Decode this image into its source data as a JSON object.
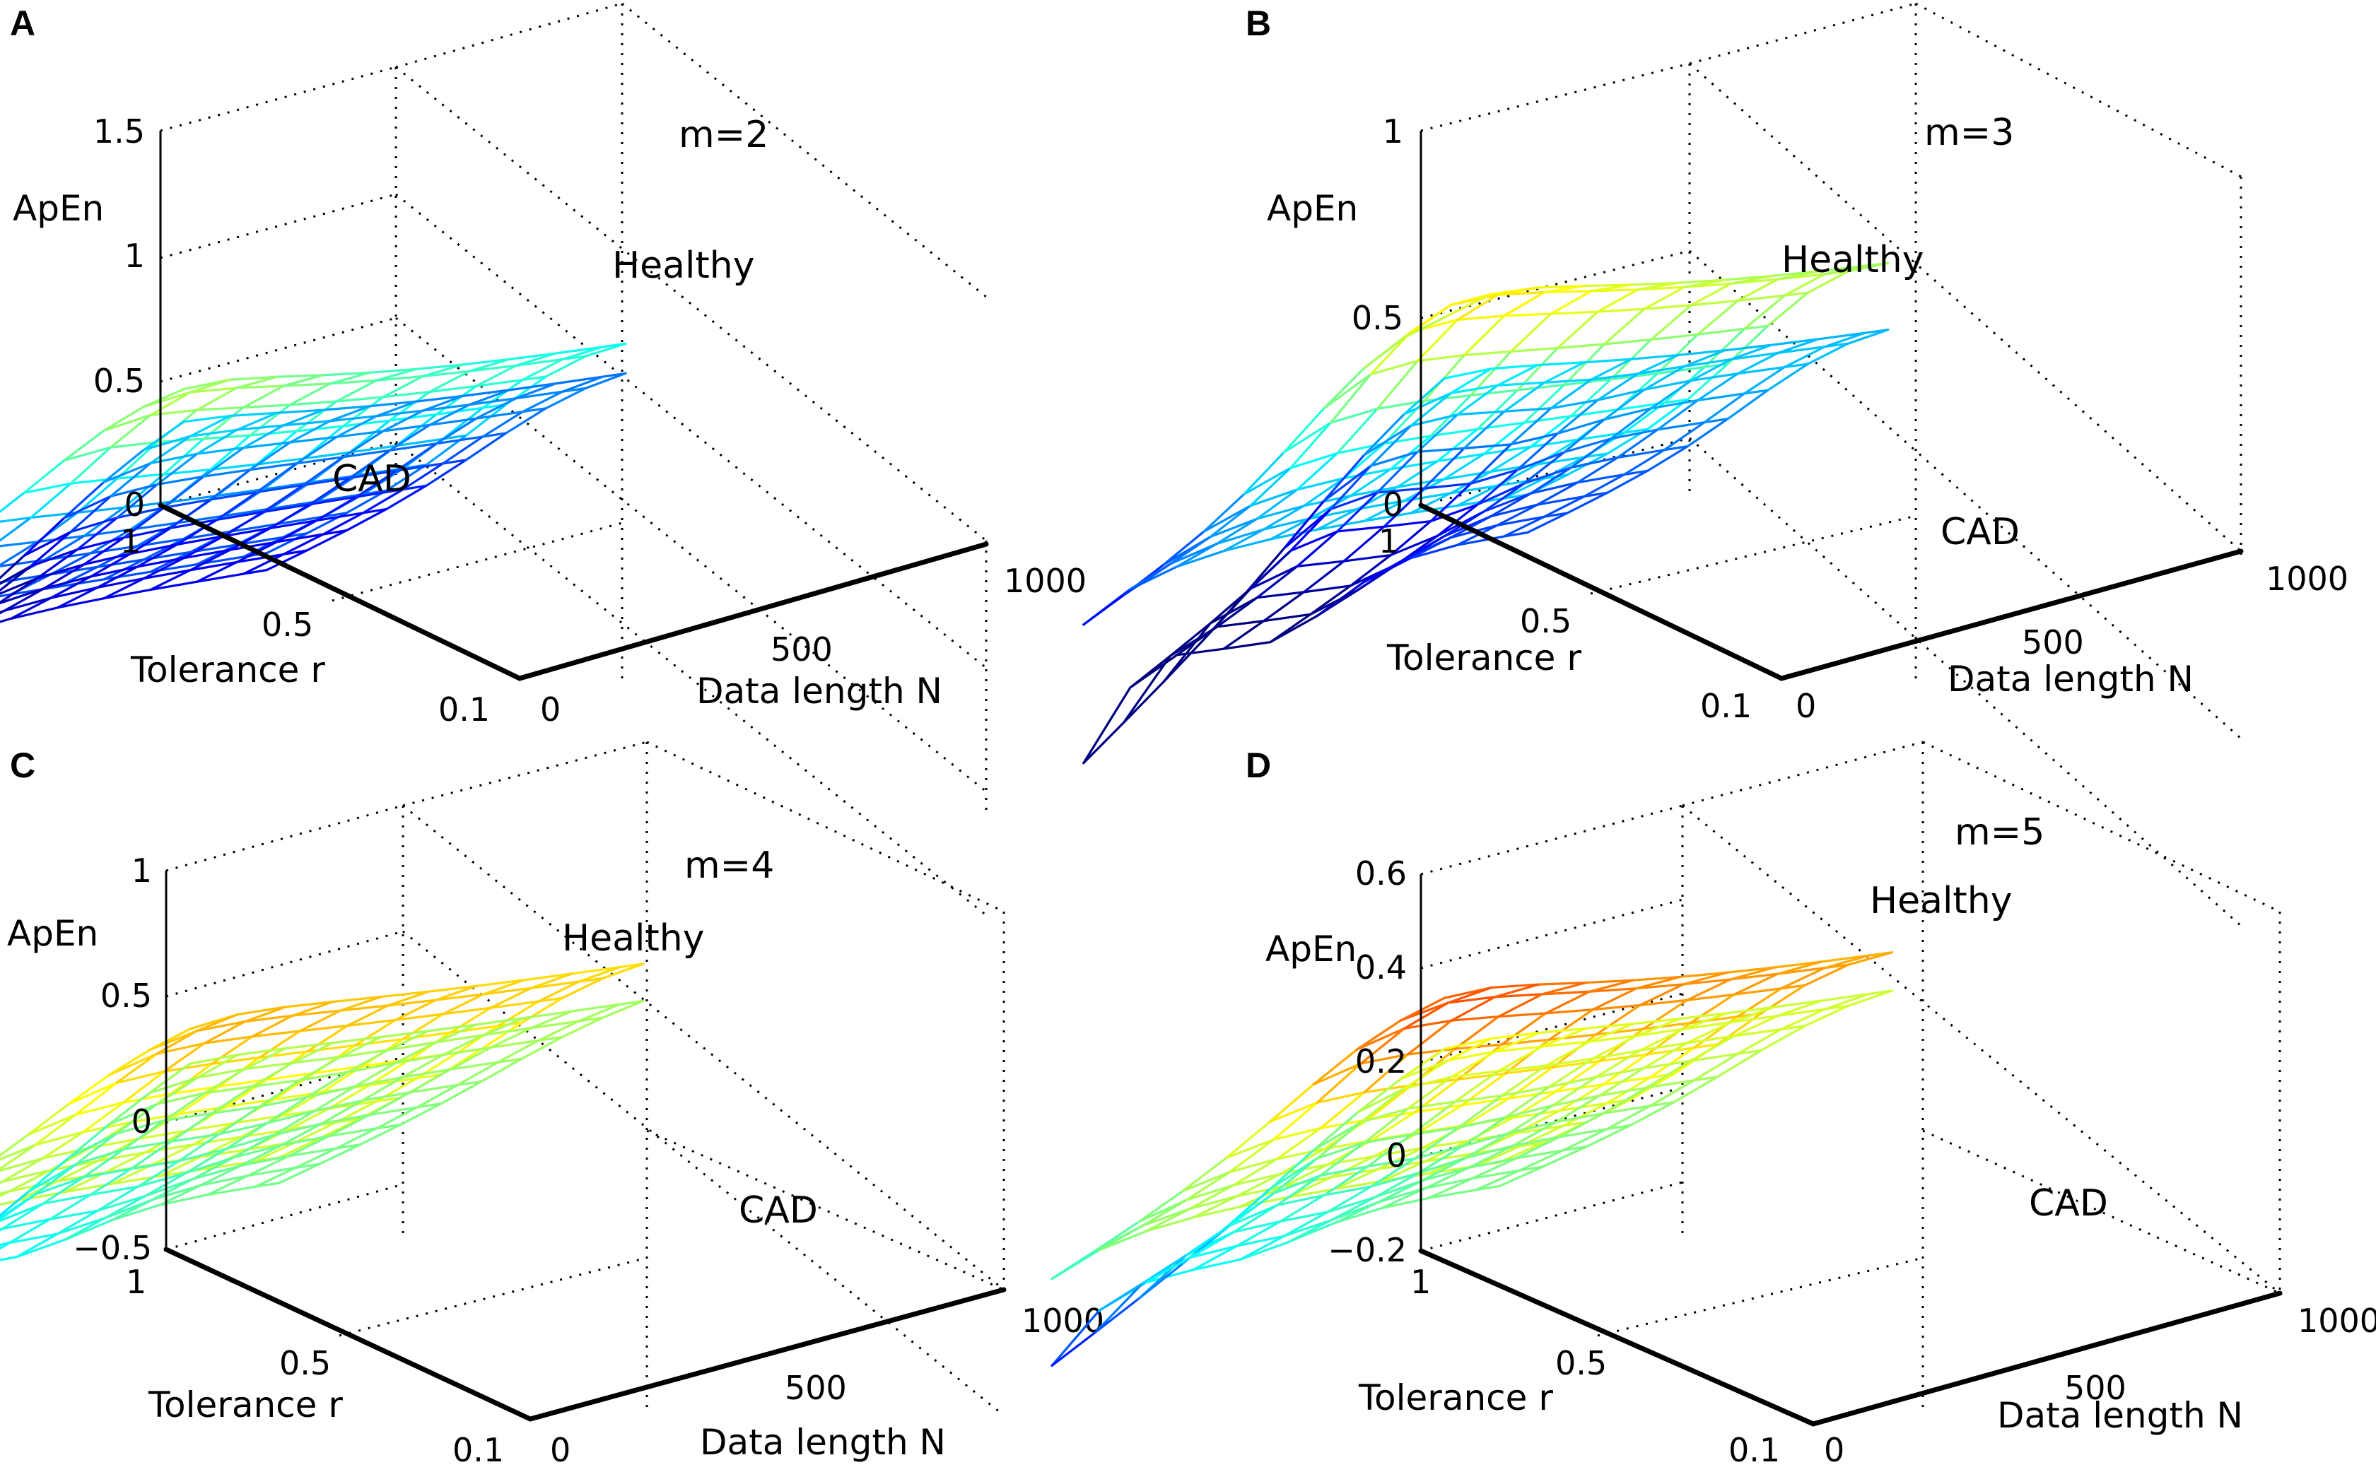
{
  "chart_data": [
    {
      "type": "surface",
      "panel": "A",
      "annotation": "m=2",
      "zlabel": "ApEn",
      "xlabel": "Data length N",
      "ylabel": "Tolerance r",
      "z_ticks": [
        "0",
        "0.5",
        "1",
        "1.5"
      ],
      "z_tick_values": [
        0,
        0.5,
        1,
        1.5
      ],
      "zlim": [
        0,
        1.5
      ],
      "x_ticks": [
        "0",
        "500",
        "1000"
      ],
      "x_tick_values": [
        0,
        500,
        1000
      ],
      "xlim": [
        0,
        1000
      ],
      "y_ticks": [
        "0.1",
        "0.5",
        "1"
      ],
      "y_tick_values": [
        0.1,
        0.5,
        1
      ],
      "ylim": [
        0.1,
        1
      ],
      "series": [
        {
          "name": "Healthy",
          "peak": 1.0,
          "tail": 0.3,
          "edge_low": 0.3,
          "edge_high": 0.6,
          "dip": 0.0
        },
        {
          "name": "CAD",
          "peak": 0.65,
          "tail": 0.2,
          "edge_low": -0.55,
          "edge_high": 0.45,
          "dip": 0.0
        }
      ]
    },
    {
      "type": "surface",
      "panel": "B",
      "annotation": "m=3",
      "zlabel": "ApEn",
      "xlabel": "Data length N",
      "ylabel": "Tolerance r",
      "z_ticks": [
        "0",
        "0.5",
        "1"
      ],
      "z_tick_values": [
        0,
        0.5,
        1
      ],
      "zlim": [
        0,
        1
      ],
      "x_ticks": [
        "0",
        "500",
        "1000"
      ],
      "x_tick_values": [
        0,
        500,
        1000
      ],
      "xlim": [
        0,
        1000
      ],
      "y_ticks": [
        "0.1",
        "0.5",
        "1"
      ],
      "y_tick_values": [
        0.1,
        0.5,
        1
      ],
      "ylim": [
        0.1,
        1
      ],
      "series": [
        {
          "name": "Healthy",
          "peak": 0.8,
          "tail": 0.3,
          "edge_low": 0.05,
          "edge_high": 0.4,
          "dip": 0.0
        },
        {
          "name": "CAD",
          "peak": 0.45,
          "tail": 0.2,
          "edge_low": -0.45,
          "edge_high": 0.3,
          "dip": -0.15
        }
      ]
    },
    {
      "type": "surface",
      "panel": "C",
      "annotation": "m=4",
      "zlabel": "ApEn",
      "xlabel": "Data length N",
      "ylabel": "Tolerance r",
      "z_ticks": [
        "−0.5",
        "0",
        "0.5",
        "1"
      ],
      "z_tick_values": [
        -0.5,
        0,
        0.5,
        1
      ],
      "zlim": [
        -0.5,
        1
      ],
      "x_ticks": [
        "0",
        "500",
        "1000"
      ],
      "x_tick_values": [
        0,
        500,
        1000
      ],
      "xlim": [
        0,
        1000
      ],
      "y_ticks": [
        "0.1",
        "0.5",
        "1"
      ],
      "y_tick_values": [
        0.1,
        0.5,
        1
      ],
      "ylim": [
        0.1,
        1
      ],
      "series": [
        {
          "name": "Healthy",
          "peak": 0.55,
          "tail": 0.25,
          "edge_low": 0.0,
          "edge_high": 0.3,
          "dip": 0.0
        },
        {
          "name": "CAD",
          "peak": 0.3,
          "tail": 0.15,
          "edge_low": -0.45,
          "edge_high": 0.2,
          "dip": -0.1
        }
      ]
    },
    {
      "type": "surface",
      "panel": "D",
      "annotation": "m=5",
      "zlabel": "ApEn",
      "xlabel": "Data length N",
      "ylabel": "Tolerance r",
      "z_ticks": [
        "−0.2",
        "0",
        "0.2",
        "0.4",
        "0.6"
      ],
      "z_tick_values": [
        -0.2,
        0,
        0.2,
        0.4,
        0.6
      ],
      "zlim": [
        -0.2,
        0.6
      ],
      "x_ticks": [
        "0",
        "500",
        "1000"
      ],
      "x_tick_values": [
        0,
        500,
        1000
      ],
      "xlim": [
        0,
        1000
      ],
      "y_ticks": [
        "0.1",
        "0.5",
        "1"
      ],
      "y_tick_values": [
        0.1,
        0.5,
        1
      ],
      "ylim": [
        0.1,
        1
      ],
      "series": [
        {
          "name": "Healthy",
          "peak": 0.45,
          "tail": 0.2,
          "edge_low": 0.05,
          "edge_high": 0.3,
          "dip": 0.0
        },
        {
          "name": "CAD",
          "peak": 0.3,
          "tail": 0.15,
          "edge_low": -0.2,
          "edge_high": 0.2,
          "dip": -0.05
        }
      ]
    }
  ]
}
